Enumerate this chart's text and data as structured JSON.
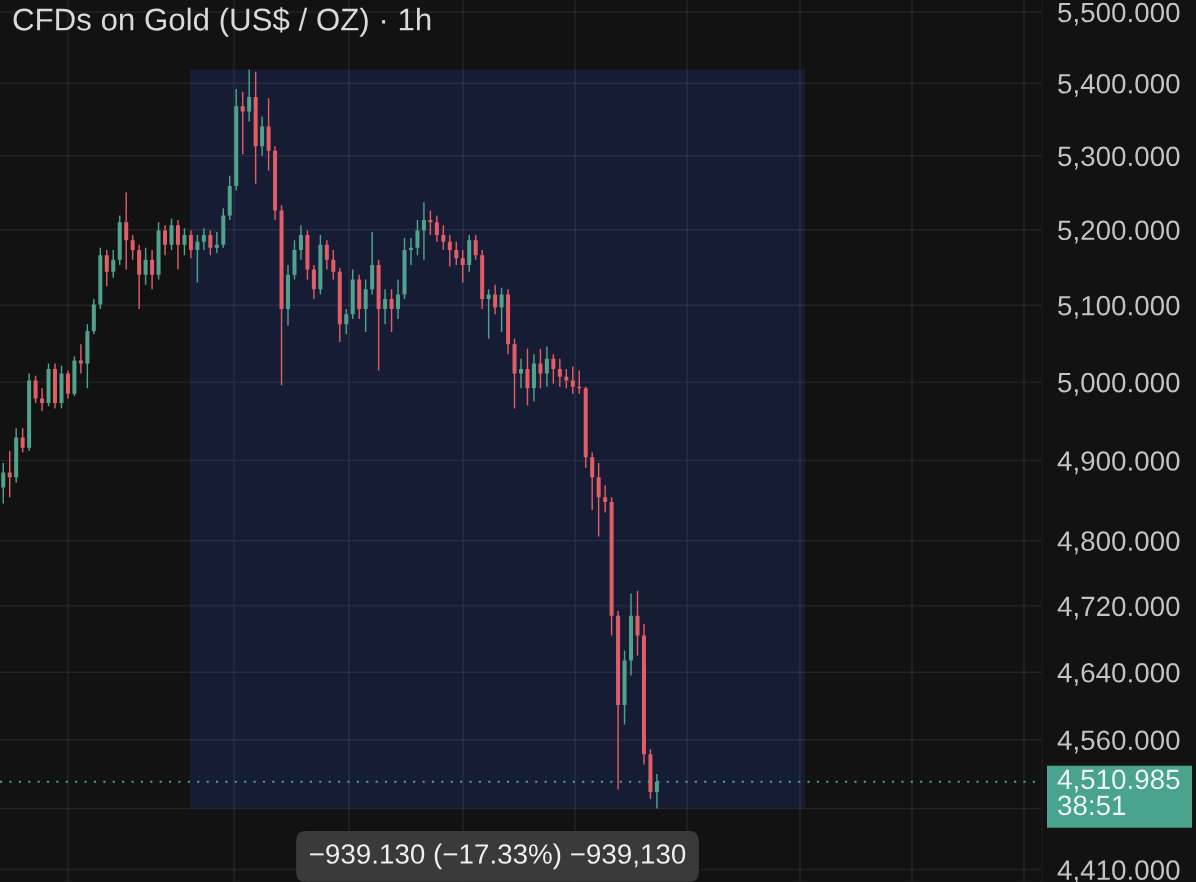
{
  "chart_data": {
    "type": "candlestick",
    "title": "CFDs on Gold (US$ / OZ) · 1h",
    "categories": [
      null,
      null,
      null,
      null,
      null,
      null,
      null,
      null,
      null,
      null,
      null,
      null,
      null,
      null,
      null,
      null,
      null,
      null,
      null,
      null,
      null,
      null,
      null,
      null,
      null,
      null,
      null,
      null,
      null,
      null,
      null,
      null,
      null,
      null,
      null,
      null,
      null,
      null,
      null,
      null,
      null,
      null,
      null,
      null,
      null,
      null,
      null,
      null,
      null,
      null,
      null,
      null,
      null,
      null,
      null,
      null,
      null,
      null,
      null,
      null,
      null,
      null,
      null,
      null,
      null,
      null,
      null,
      null,
      null,
      null,
      null,
      null,
      null,
      null,
      null,
      null,
      null,
      null,
      null,
      null,
      null,
      null,
      null,
      null,
      null,
      null,
      null,
      null,
      null,
      null,
      null,
      null,
      null,
      null,
      null,
      null,
      null,
      null,
      null,
      null,
      null,
      null,
      null,
      null,
      null,
      null,
      null,
      null,
      null,
      null,
      null,
      null,
      null,
      null,
      null,
      null,
      null,
      null,
      null,
      null,
      null,
      null,
      null,
      null,
      null,
      null,
      null,
      null,
      null,
      null,
      null,
      null,
      null,
      null,
      null,
      null,
      null,
      null,
      null,
      null,
      null,
      null,
      null,
      null,
      null,
      null,
      null,
      null,
      null,
      null,
      null,
      null,
      null,
      null,
      null,
      null,
      null,
      null,
      null,
      null,
      null
    ],
    "ohlc": [
      [
        4866,
        4897,
        4846,
        4885
      ],
      [
        4885,
        4912,
        4854,
        4879
      ],
      [
        4879,
        4941,
        4872,
        4929
      ],
      [
        4929,
        4941,
        4910,
        4916
      ],
      [
        4916,
        5011,
        4912,
        5002
      ],
      [
        5002,
        5008,
        4973,
        4979
      ],
      [
        4979,
        4992,
        4963,
        4973
      ],
      [
        4973,
        5024,
        4969,
        5017
      ],
      [
        5017,
        5024,
        4966,
        4973
      ],
      [
        4973,
        5021,
        4966,
        5011
      ],
      [
        5011,
        5015,
        4979,
        4985
      ],
      [
        4985,
        5033,
        4982,
        5028
      ],
      [
        5028,
        5049,
        5011,
        5024
      ],
      [
        5024,
        5075,
        4992,
        5066
      ],
      [
        5066,
        5108,
        5062,
        5101
      ],
      [
        5101,
        5176,
        5095,
        5166
      ],
      [
        5166,
        5173,
        5125,
        5144
      ],
      [
        5144,
        5173,
        5136,
        5160
      ],
      [
        5160,
        5219,
        5153,
        5210
      ],
      [
        5210,
        5250,
        5147,
        5186
      ],
      [
        5186,
        5193,
        5160,
        5173
      ],
      [
        5173,
        5180,
        5095,
        5140
      ],
      [
        5140,
        5176,
        5127,
        5160
      ],
      [
        5160,
        5173,
        5121,
        5140
      ],
      [
        5140,
        5210,
        5134,
        5199
      ],
      [
        5199,
        5206,
        5166,
        5180
      ],
      [
        5180,
        5215,
        5173,
        5206
      ],
      [
        5206,
        5213,
        5147,
        5180
      ],
      [
        5180,
        5202,
        5166,
        5193
      ],
      [
        5193,
        5199,
        5162,
        5173
      ],
      [
        5173,
        5193,
        5130,
        5184
      ],
      [
        5184,
        5202,
        5173,
        5193
      ],
      [
        5193,
        5199,
        5166,
        5176
      ],
      [
        5176,
        5197,
        5169,
        5180
      ],
      [
        5180,
        5229,
        5176,
        5219
      ],
      [
        5219,
        5273,
        5213,
        5259
      ],
      [
        5259,
        5392,
        5253,
        5368
      ],
      [
        5368,
        5388,
        5302,
        5361
      ],
      [
        5361,
        5419,
        5347,
        5381
      ],
      [
        5381,
        5416,
        5262,
        5313
      ],
      [
        5313,
        5354,
        5300,
        5340
      ],
      [
        5340,
        5379,
        5280,
        5307
      ],
      [
        5307,
        5313,
        5213,
        5226
      ],
      [
        5226,
        5233,
        4996,
        5095
      ],
      [
        5095,
        5153,
        5073,
        5140
      ],
      [
        5140,
        5186,
        5134,
        5173
      ],
      [
        5173,
        5206,
        5160,
        5193
      ],
      [
        5193,
        5199,
        5134,
        5147
      ],
      [
        5147,
        5153,
        5108,
        5121
      ],
      [
        5121,
        5193,
        5114,
        5180
      ],
      [
        5180,
        5186,
        5147,
        5160
      ],
      [
        5160,
        5173,
        5134,
        5144
      ],
      [
        5144,
        5149,
        5052,
        5075
      ],
      [
        5075,
        5095,
        5062,
        5088
      ],
      [
        5088,
        5147,
        5082,
        5134
      ],
      [
        5134,
        5140,
        5082,
        5095
      ],
      [
        5095,
        5134,
        5065,
        5121
      ],
      [
        5121,
        5197,
        5114,
        5153
      ],
      [
        5153,
        5160,
        5015,
        5095
      ],
      [
        5095,
        5121,
        5075,
        5108
      ],
      [
        5108,
        5121,
        5065,
        5095
      ],
      [
        5095,
        5134,
        5082,
        5114
      ],
      [
        5114,
        5189,
        5108,
        5173
      ],
      [
        5173,
        5189,
        5153,
        5176
      ],
      [
        5176,
        5213,
        5166,
        5199
      ],
      [
        5199,
        5237,
        5160,
        5213
      ],
      [
        5213,
        5226,
        5193,
        5210
      ],
      [
        5210,
        5219,
        5184,
        5193
      ],
      [
        5193,
        5206,
        5173,
        5184
      ],
      [
        5184,
        5193,
        5151,
        5173
      ],
      [
        5173,
        5184,
        5153,
        5162
      ],
      [
        5162,
        5173,
        5130,
        5153
      ],
      [
        5153,
        5193,
        5144,
        5186
      ],
      [
        5186,
        5193,
        5160,
        5166
      ],
      [
        5166,
        5173,
        5095,
        5108
      ],
      [
        5108,
        5121,
        5056,
        5114
      ],
      [
        5114,
        5127,
        5088,
        5097
      ],
      [
        5097,
        5123,
        5065,
        5114
      ],
      [
        5114,
        5121,
        5036,
        5049
      ],
      [
        5049,
        5056,
        4966,
        5011
      ],
      [
        5011,
        5030,
        4992,
        5017
      ],
      [
        5017,
        5043,
        4970,
        4992
      ],
      [
        4992,
        5036,
        4975,
        5024
      ],
      [
        5024,
        5043,
        4992,
        5011
      ],
      [
        5011,
        5046,
        4994,
        5030
      ],
      [
        5030,
        5036,
        4998,
        5017
      ],
      [
        5017,
        5030,
        4994,
        5007
      ],
      [
        5007,
        5017,
        4992,
        5002
      ],
      [
        5002,
        5020,
        4985,
        4994
      ],
      [
        4994,
        5015,
        4985,
        4992
      ],
      [
        4992,
        4994,
        4891,
        4904
      ],
      [
        4904,
        4910,
        4838,
        4879
      ],
      [
        4879,
        4897,
        4805,
        4854
      ],
      [
        4854,
        4869,
        4835,
        4848
      ],
      [
        4848,
        4854,
        4684,
        4708
      ],
      [
        4708,
        4714,
        4502,
        4601
      ],
      [
        4601,
        4666,
        4578,
        4654
      ],
      [
        4654,
        4735,
        4636,
        4708
      ],
      [
        4708,
        4738,
        4660,
        4684
      ],
      [
        4684,
        4698,
        4531,
        4543
      ],
      [
        4543,
        4549,
        4491,
        4499
      ],
      [
        4499,
        4520,
        4480,
        4510.985
      ],
      null,
      null,
      null,
      null,
      null,
      null,
      null,
      null,
      null,
      null,
      null,
      null,
      null,
      null,
      null,
      null,
      null,
      null,
      null,
      null,
      null,
      null,
      null,
      null,
      null,
      null,
      null,
      null,
      null,
      null,
      null,
      null,
      null,
      null,
      null,
      null,
      null,
      null,
      null,
      null,
      null,
      null,
      null,
      null,
      null,
      null,
      null,
      null,
      null,
      null,
      null,
      null,
      null,
      null,
      null,
      null,
      null,
      null,
      null
    ],
    "colors": [
      "#51a28d",
      "#e15d68",
      "#51a28d",
      "#e15d68",
      "#51a28d",
      "#e15d68",
      "#e15d68",
      "#51a28d",
      "#e15d68",
      "#51a28d",
      "#e15d68",
      "#51a28d",
      "#e15d68",
      "#51a28d",
      "#51a28d",
      "#51a28d",
      "#e15d68",
      "#51a28d",
      "#51a28d",
      "#e15d68",
      "#e15d68",
      "#e15d68",
      "#51a28d",
      "#e15d68",
      "#51a28d",
      "#e15d68",
      "#51a28d",
      "#e15d68",
      "#51a28d",
      "#e15d68",
      "#51a28d",
      "#51a28d",
      "#e15d68",
      "#51a28d",
      "#51a28d",
      "#51a28d",
      "#51a28d",
      "#e15d68",
      "#51a28d",
      "#e15d68",
      "#51a28d",
      "#e15d68",
      "#e15d68",
      "#e15d68",
      "#51a28d",
      "#51a28d",
      "#51a28d",
      "#e15d68",
      "#e15d68",
      "#51a28d",
      "#e15d68",
      "#e15d68",
      "#e15d68",
      "#51a28d",
      "#51a28d",
      "#e15d68",
      "#51a28d",
      "#51a28d",
      "#e15d68",
      "#51a28d",
      "#e15d68",
      "#51a28d",
      "#51a28d",
      "#51a28d",
      "#51a28d",
      "#51a28d",
      "#e15d68",
      "#e15d68",
      "#e15d68",
      "#e15d68",
      "#e15d68",
      "#e15d68",
      "#51a28d",
      "#e15d68",
      "#e15d68",
      "#51a28d",
      "#e15d68",
      "#51a28d",
      "#e15d68",
      "#e15d68",
      "#51a28d",
      "#e15d68",
      "#51a28d",
      "#e15d68",
      "#51a28d",
      "#e15d68",
      "#e15d68",
      "#e15d68",
      "#e15d68",
      "#e15d68",
      "#e15d68",
      "#e15d68",
      "#e15d68",
      "#e15d68",
      "#e15d68",
      "#e15d68",
      "#51a28d",
      "#51a28d",
      "#e15d68",
      "#e15d68",
      "#e15d68",
      "#51a28d",
      null,
      null,
      null,
      null,
      null,
      null,
      null,
      null,
      null,
      null,
      null,
      null,
      null,
      null,
      null,
      null,
      null,
      null,
      null,
      null,
      null,
      null,
      null,
      null,
      null,
      null,
      null,
      null,
      null,
      null,
      null,
      null,
      null,
      null,
      null,
      null,
      null,
      null,
      null,
      null,
      null,
      null,
      null,
      null,
      null,
      null,
      null,
      null,
      null,
      null,
      null,
      null,
      null,
      null,
      null,
      null,
      null,
      null,
      null
    ],
    "log": "y",
    "ylim": [
      4396,
      5517
    ],
    "yticks": [
      {
        "value": 5500,
        "label": "5,500.000"
      },
      {
        "value": 5400,
        "label": "5,400.000"
      },
      {
        "value": 5300,
        "label": "5,300.000"
      },
      {
        "value": 5200,
        "label": "5,200.000"
      },
      {
        "value": 5100,
        "label": "5,100.000"
      },
      {
        "value": 5000,
        "label": "5,000.000"
      },
      {
        "value": 4900,
        "label": "4,900.000"
      },
      {
        "value": 4800,
        "label": "4,800.000"
      },
      {
        "value": 4720,
        "label": "4,720.000"
      },
      {
        "value": 4640,
        "label": "4,640.000"
      },
      {
        "value": 4560,
        "label": "4,560.000"
      },
      {
        "value": 4480,
        "label": null
      },
      {
        "value": 4410,
        "label": "4,410.000"
      }
    ],
    "tick_labels": "y",
    "grid": true,
    "ref_lines": [
      {
        "axis": "y",
        "value": 4510.985,
        "label": "4,510.985",
        "color": "#4aa38f",
        "line_style": "dotted"
      }
    ],
    "bands": [
      {
        "axis": "y",
        "from": 4480,
        "to": 5419,
        "label": "−939.130 (−17.33%) −939,130",
        "color": "#161c33"
      }
    ],
    "annotations": [
      "38:51"
    ]
  }
}
